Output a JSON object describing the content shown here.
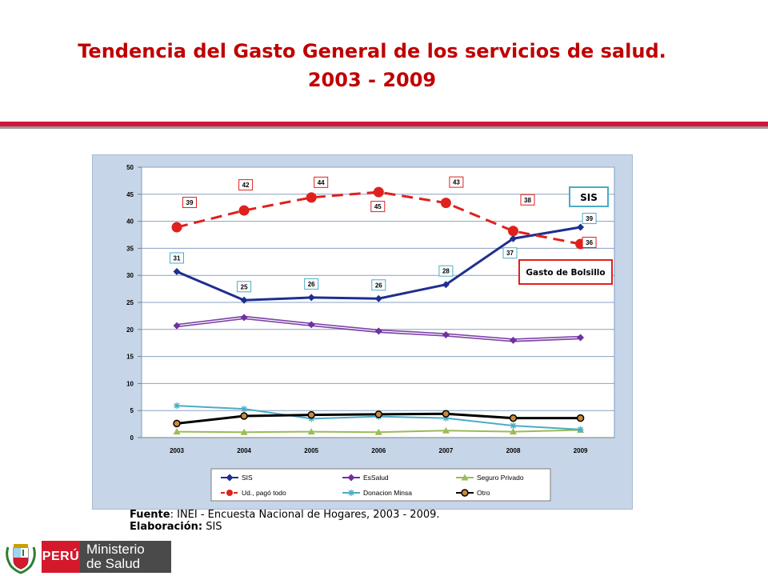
{
  "header": {
    "title_line1": "Tendencia del Gasto General de los servicios de salud.",
    "title_line2": "2003 - 2009"
  },
  "source": {
    "line1_label": "Fuente",
    "line1_text": ": INEI - Encuesta Nacional de Hogares, 2003 - 2009.",
    "line2_label": "Elaboración:",
    "line2_text": " SIS"
  },
  "logo": {
    "country": "PERÚ",
    "ministry_line1": "Ministerio",
    "ministry_line2": "de Salud"
  },
  "chart_data": {
    "type": "line",
    "x": [
      2003,
      2004,
      2005,
      2006,
      2007,
      2008,
      2009
    ],
    "ylim": [
      0,
      50
    ],
    "yticks": [
      0,
      5,
      10,
      15,
      20,
      25,
      30,
      35,
      40,
      45,
      50
    ],
    "grid": "horizontal",
    "legend_position": "bottom",
    "series": [
      {
        "name": "SIS",
        "values": [
          30.7,
          25.4,
          25.9,
          25.7,
          28.3,
          36.8,
          38.9
        ],
        "color": "#1f2f8f",
        "marker": "diamond",
        "dash": false,
        "labels": [
          "31",
          "25",
          "26",
          "26",
          "28",
          "37",
          "39"
        ],
        "label_border": "#4bacc6"
      },
      {
        "name": "EsSalud",
        "values": [
          20.7,
          22.2,
          20.9,
          19.7,
          19.0,
          18.0,
          18.5
        ],
        "color": "#7030a0",
        "marker": "diamond",
        "dash": false
      },
      {
        "name": "Seguro Privado",
        "values": [
          1.1,
          1.0,
          1.1,
          1.0,
          1.3,
          1.1,
          1.4
        ],
        "color": "#9bbb59",
        "marker": "triangle",
        "dash": false
      },
      {
        "name": "Ud., pagó todo",
        "values": [
          38.9,
          42.0,
          44.4,
          45.4,
          43.4,
          38.2,
          35.8
        ],
        "color": "#e0201c",
        "marker": "circle",
        "dash": true,
        "labels": [
          "39",
          "42",
          "44",
          "45",
          "43",
          "38",
          "36"
        ],
        "label_border": "#e0201c"
      },
      {
        "name": "Donacion Minsa",
        "values": [
          5.9,
          5.3,
          3.5,
          3.9,
          3.6,
          2.2,
          1.5
        ],
        "color": "#4bacc6",
        "marker": "star",
        "dash": false
      },
      {
        "name": "Otro",
        "values": [
          2.6,
          4.0,
          4.2,
          4.3,
          4.4,
          3.6,
          3.6
        ],
        "color": "#000000",
        "marker": "circle-small",
        "dash": false
      }
    ],
    "annotations": [
      {
        "text": "SIS",
        "border": "#4bacc6"
      },
      {
        "text": "Gasto de Bolsillo",
        "border": "#e0201c"
      }
    ]
  }
}
